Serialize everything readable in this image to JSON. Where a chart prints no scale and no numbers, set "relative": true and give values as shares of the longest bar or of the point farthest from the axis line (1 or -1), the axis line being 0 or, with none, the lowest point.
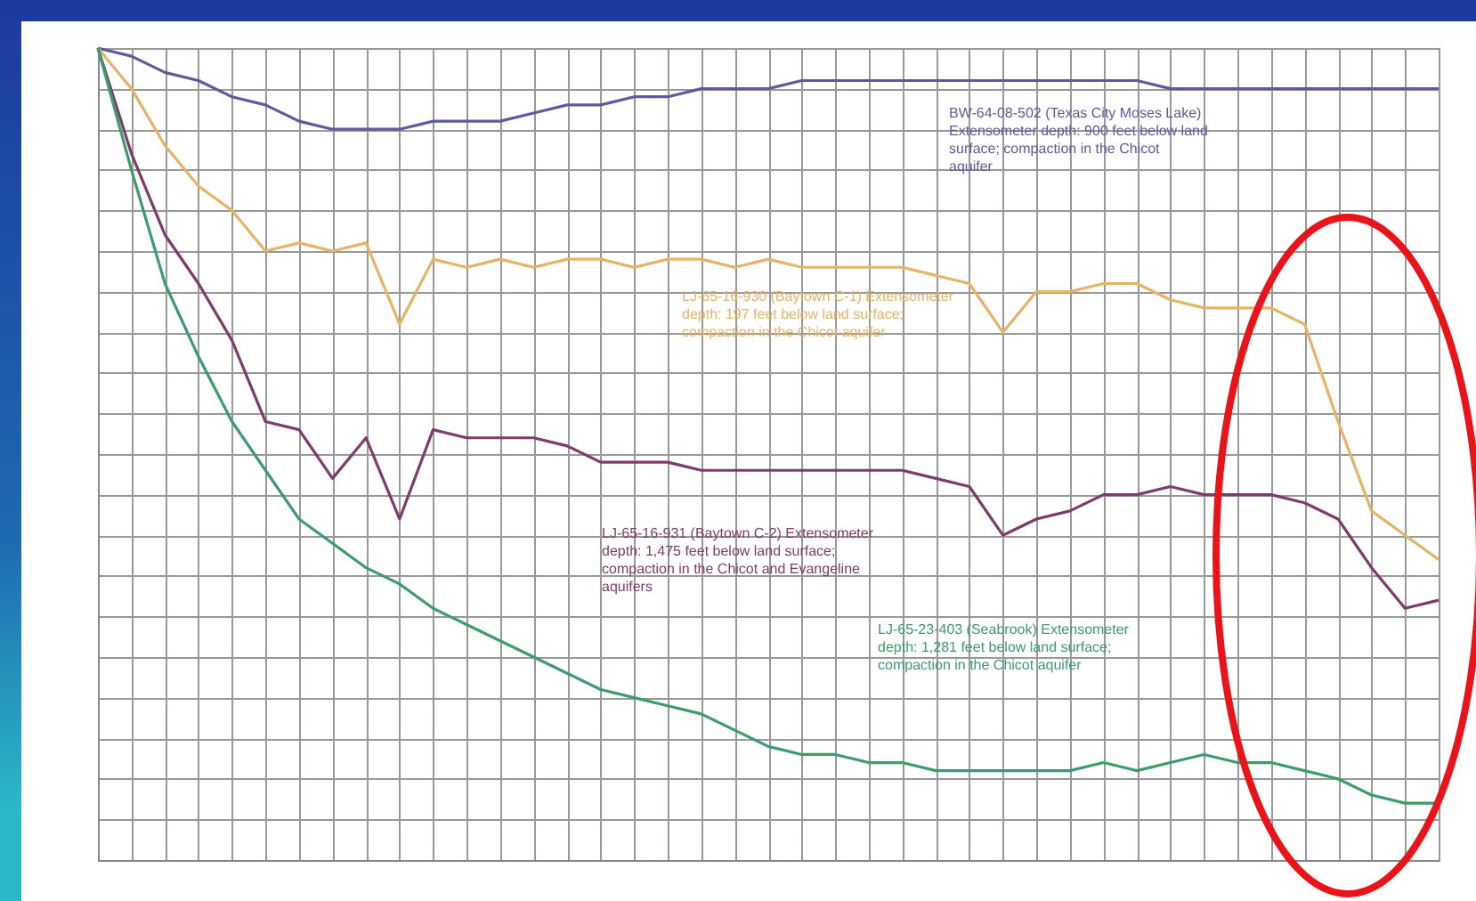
{
  "chart_data": {
    "type": "line",
    "relative": true,
    "grid": true,
    "marker": "none",
    "line_style": "solid",
    "categories": [
      null,
      null,
      null,
      null,
      null,
      null,
      null,
      null,
      null,
      null,
      null,
      null,
      null,
      null,
      null,
      null,
      null,
      null,
      null,
      null,
      null,
      null,
      null,
      null,
      null,
      null,
      null,
      null,
      null,
      null,
      null,
      null,
      null,
      null,
      null,
      null,
      null,
      null,
      null,
      null,
      null
    ],
    "series": [
      {
        "color": "#5c5c9c",
        "values": [
          1.0,
          0.99,
          0.97,
          0.96,
          0.94,
          0.93,
          0.91,
          0.9,
          0.9,
          0.9,
          0.91,
          0.91,
          0.91,
          0.92,
          0.93,
          0.93,
          0.94,
          0.94,
          0.95,
          0.95,
          0.95,
          0.96,
          0.96,
          0.96,
          0.96,
          0.96,
          0.96,
          0.96,
          0.96,
          0.96,
          0.96,
          0.96,
          0.95,
          0.95,
          0.95,
          0.95,
          0.95,
          0.95,
          0.95,
          0.95,
          0.95
        ]
      },
      {
        "color": "#e6b466",
        "values": [
          1.0,
          0.95,
          0.88,
          0.83,
          0.8,
          0.75,
          0.76,
          0.75,
          0.76,
          0.66,
          0.74,
          0.73,
          0.74,
          0.73,
          0.74,
          0.74,
          0.73,
          0.74,
          0.74,
          0.73,
          0.74,
          0.73,
          0.73,
          0.73,
          0.73,
          0.72,
          0.71,
          0.65,
          0.7,
          0.7,
          0.71,
          0.71,
          0.69,
          0.68,
          0.68,
          0.68,
          0.66,
          0.54,
          0.43,
          0.4,
          0.37
        ]
      },
      {
        "color": "#7c3c6c",
        "values": [
          1.0,
          0.87,
          0.77,
          0.71,
          0.64,
          0.54,
          0.53,
          0.47,
          0.52,
          0.42,
          0.53,
          0.52,
          0.52,
          0.52,
          0.51,
          0.49,
          0.49,
          0.49,
          0.48,
          0.48,
          0.48,
          0.48,
          0.48,
          0.48,
          0.48,
          0.47,
          0.46,
          0.4,
          0.42,
          0.43,
          0.45,
          0.45,
          0.46,
          0.45,
          0.45,
          0.45,
          0.44,
          0.42,
          0.36,
          0.31,
          0.32
        ]
      },
      {
        "color": "#3c9c6c",
        "values": [
          1.0,
          0.85,
          0.71,
          0.62,
          0.54,
          0.48,
          0.42,
          0.39,
          0.36,
          0.34,
          0.31,
          0.29,
          0.27,
          0.25,
          0.23,
          0.21,
          0.2,
          0.19,
          0.18,
          0.16,
          0.14,
          0.13,
          0.13,
          0.12,
          0.12,
          0.11,
          0.11,
          0.11,
          0.11,
          0.11,
          0.12,
          0.11,
          0.12,
          0.13,
          0.12,
          0.12,
          0.11,
          0.1,
          0.08,
          0.07,
          0.07
        ]
      }
    ],
    "annotations": [
      "BW-64-08-502 (Texas City Moses Lake) Extensometer depth: 900 feet below land surface; compaction in the Chicot aquifer",
      "LJ-65-16-930 (Baytown C-1) Extensometer depth: 197 feet below land surface; compaction in the Chicot aquifer",
      "LJ-65-16-931 (Baytown C-2) Extensometer depth: 1,475 feet below land surface; compaction in the Chicot and Evangeline aquifers",
      "LJ-65-23-403 (Seabrook) Extensometer depth: 1,281 feet below land surface; compaction in the Chicot aquifer"
    ]
  }
}
